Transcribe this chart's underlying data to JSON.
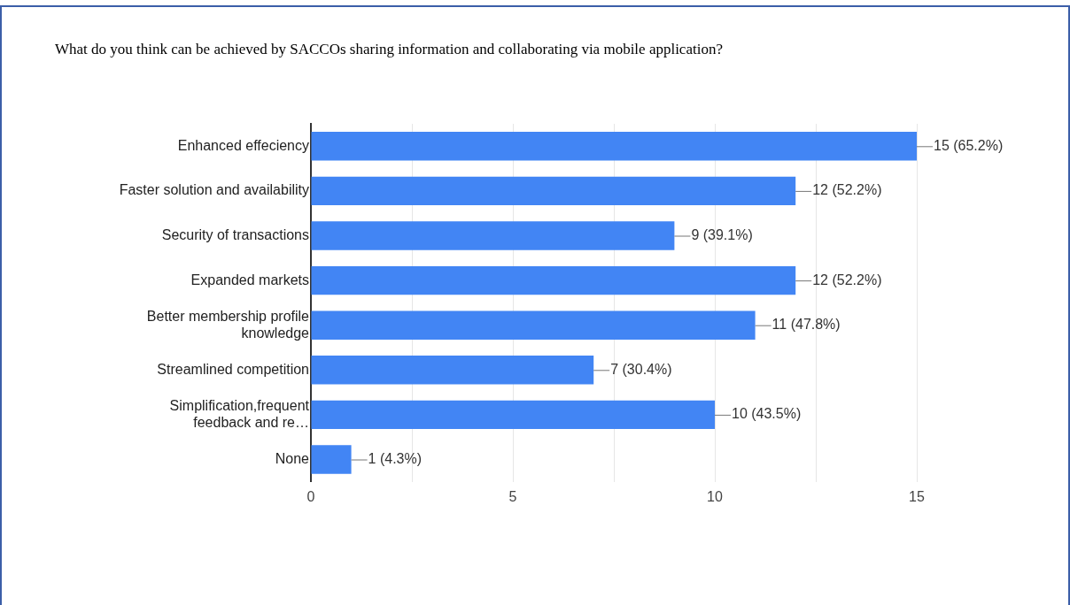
{
  "chart_data": {
    "type": "bar",
    "orientation": "horizontal",
    "title": "What do you think can be achieved by SACCOs sharing information and collaborating via mobile application?",
    "categories": [
      "Enhanced effeciency",
      "Faster solution and availability",
      "Security of transactions",
      "Expanded markets",
      "Better membership profile knowledge",
      "Streamlined competition",
      "Simplification,frequent feedback and re…",
      "None"
    ],
    "values": [
      15,
      12,
      9,
      12,
      11,
      7,
      10,
      1
    ],
    "value_labels": [
      "15 (65.2%)",
      "12 (52.2%)",
      "9 (39.1%)",
      "12 (52.2%)",
      "11 (47.8%)",
      "7 (30.4%)",
      "10 (43.5%)",
      "1 (4.3%)"
    ],
    "color": "#4285f4",
    "xlim": [
      0,
      15
    ],
    "xticks": [
      0,
      {
        "value": 2.5,
        "label": null
      },
      5,
      {
        "value": 7.5,
        "label": null
      },
      10,
      {
        "value": 12.5,
        "label": null
      },
      15
    ],
    "grid": "x"
  }
}
